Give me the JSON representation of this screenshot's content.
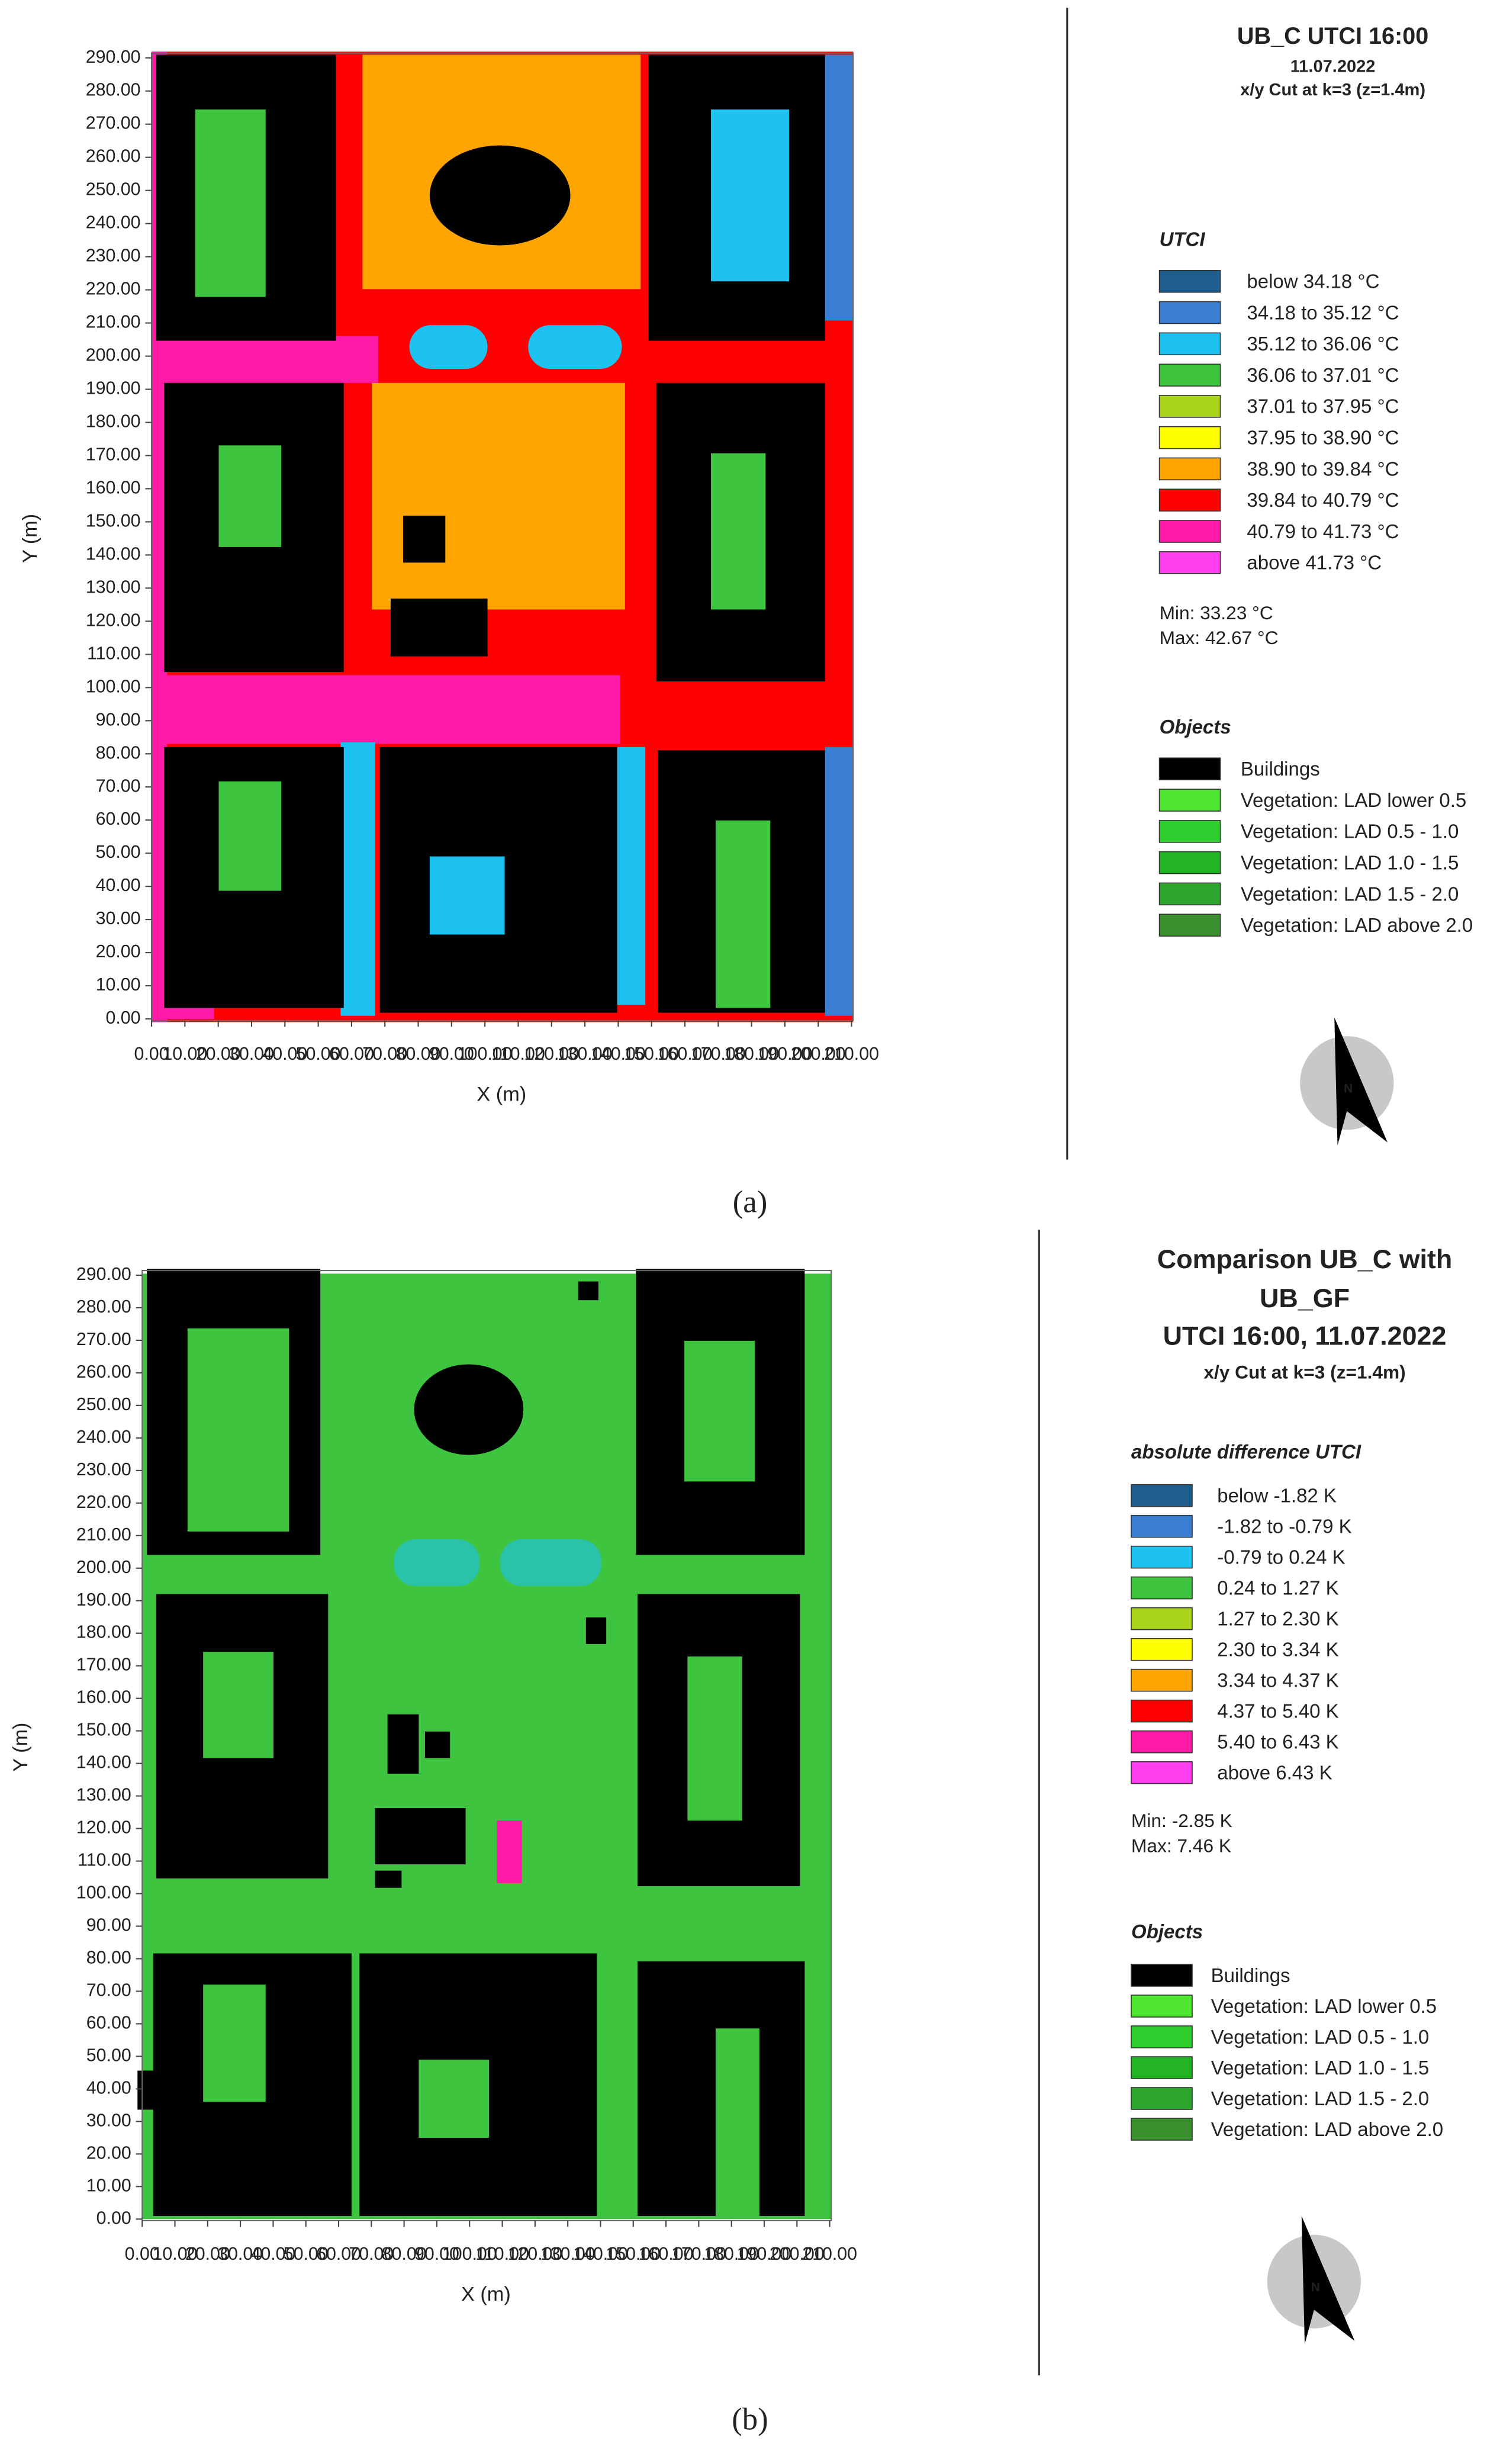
{
  "panels": [
    {
      "title_lines": [
        "UB_C UTCI 16:00",
        "11.07.2022",
        "x/y Cut at k=3 (z=1.4m)"
      ],
      "y_axis_label": "Y (m)",
      "x_axis_label": "X (m)",
      "yticks": [
        "0.00",
        "10.00",
        "20.00",
        "30.00",
        "40.00",
        "50.00",
        "60.00",
        "70.00",
        "80.00",
        "90.00",
        "100.00",
        "110.00",
        "120.00",
        "130.00",
        "140.00",
        "150.00",
        "160.00",
        "170.00",
        "180.00",
        "190.00",
        "200.00",
        "210.00",
        "220.00",
        "230.00",
        "240.00",
        "250.00",
        "260.00",
        "270.00",
        "280.00",
        "290.00"
      ],
      "xticks": [
        "0.00",
        "10.00",
        "20.00",
        "30.00",
        "40.00",
        "50.00",
        "60.00",
        "70.00",
        "80.00",
        "90.00",
        "100.00",
        "110.00",
        "120.00",
        "130.00",
        "140.00",
        "150.00",
        "160.00",
        "170.00",
        "180.00",
        "190.00",
        "200.00",
        "210.00"
      ],
      "legend_title": "UTCI",
      "legend": [
        {
          "label": "below 34.18 °C",
          "color": "#1d5e8e"
        },
        {
          "label": "34.18 to 35.12 °C",
          "color": "#3a7fd2"
        },
        {
          "label": "35.12 to 36.06 °C",
          "color": "#1ec2f0"
        },
        {
          "label": "36.06 to 37.01 °C",
          "color": "#3ec43e"
        },
        {
          "label": "37.01 to 37.95 °C",
          "color": "#a8d41c"
        },
        {
          "label": "37.95 to 38.90 °C",
          "color": "#ffff00"
        },
        {
          "label": "38.90 to 39.84 °C",
          "color": "#ffa500"
        },
        {
          "label": "39.84 to 40.79 °C",
          "color": "#ff0000"
        },
        {
          "label": "40.79 to 41.73 °C",
          "color": "#ff1aa8"
        },
        {
          "label": "above 41.73 °C",
          "color": "#ff3ef0"
        }
      ],
      "min": "Min: 33.23 °C",
      "max": "Max: 42.67 °C",
      "objects_title": "Objects",
      "objects": [
        {
          "label": "Buildings",
          "color": "#000000"
        },
        {
          "label": "Vegetation: LAD lower 0.5",
          "color": "#4ee62e"
        },
        {
          "label": "Vegetation:  LAD 0.5 - 1.0",
          "color": "#2ecf2e"
        },
        {
          "label": "Vegetation:  LAD 1.0 - 1.5",
          "color": "#22b422"
        },
        {
          "label": "Vegetation:  LAD 1.5 - 2.0",
          "color": "#2ea62e"
        },
        {
          "label": "Vegetation:  LAD above 2.0",
          "color": "#3a8f2e"
        }
      ],
      "caption": "(a)"
    },
    {
      "title_lines": [
        "Comparison UB_C with",
        "UB_GF",
        "UTCI 16:00, 11.07.2022",
        "x/y Cut at k=3 (z=1.4m)"
      ],
      "y_axis_label": "Y (m)",
      "x_axis_label": "X (m)",
      "yticks": [
        "0.00",
        "10.00",
        "20.00",
        "30.00",
        "40.00",
        "50.00",
        "60.00",
        "70.00",
        "80.00",
        "90.00",
        "100.00",
        "110.00",
        "120.00",
        "130.00",
        "140.00",
        "150.00",
        "160.00",
        "170.00",
        "180.00",
        "190.00",
        "200.00",
        "210.00",
        "220.00",
        "230.00",
        "240.00",
        "250.00",
        "260.00",
        "270.00",
        "280.00",
        "290.00"
      ],
      "xticks": [
        "0.00",
        "10.00",
        "20.00",
        "30.00",
        "40.00",
        "50.00",
        "60.00",
        "70.00",
        "80.00",
        "90.00",
        "100.00",
        "110.00",
        "120.00",
        "130.00",
        "140.00",
        "150.00",
        "160.00",
        "170.00",
        "180.00",
        "190.00",
        "200.00",
        "210.00"
      ],
      "legend_title": "absolute difference UTCI",
      "legend": [
        {
          "label": "below -1.82 K",
          "color": "#1d5e8e"
        },
        {
          "label": "-1.82 to -0.79 K",
          "color": "#3a7fd2"
        },
        {
          "label": "-0.79 to 0.24 K",
          "color": "#1ec2f0"
        },
        {
          "label": "0.24 to 1.27 K",
          "color": "#3ec43e"
        },
        {
          "label": "1.27 to 2.30 K",
          "color": "#a8d41c"
        },
        {
          "label": "2.30 to 3.34 K",
          "color": "#ffff00"
        },
        {
          "label": "3.34 to 4.37 K",
          "color": "#ffa500"
        },
        {
          "label": "4.37 to 5.40 K",
          "color": "#ff0000"
        },
        {
          "label": "5.40 to 6.43 K",
          "color": "#ff1aa8"
        },
        {
          "label": "above 6.43 K",
          "color": "#ff3ef0"
        }
      ],
      "min": "Min: -2.85 K",
      "max": "Max: 7.46 K",
      "objects_title": "Objects",
      "objects": [
        {
          "label": "Buildings",
          "color": "#000000"
        },
        {
          "label": "Vegetation: LAD lower 0.5",
          "color": "#4ee62e"
        },
        {
          "label": "Vegetation:  LAD 0.5 - 1.0",
          "color": "#2ecf2e"
        },
        {
          "label": "Vegetation:  LAD 1.0 - 1.5",
          "color": "#22b422"
        },
        {
          "label": "Vegetation:  LAD 1.5 - 2.0",
          "color": "#2ea62e"
        },
        {
          "label": "Vegetation:  LAD above 2.0",
          "color": "#3a8f2e"
        }
      ],
      "caption": "(b)"
    }
  ]
}
